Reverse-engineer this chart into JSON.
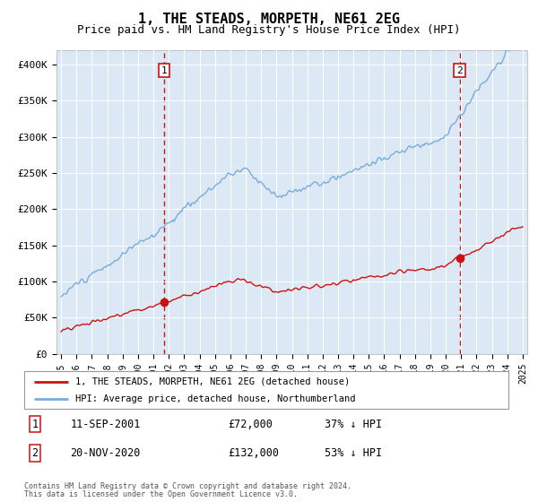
{
  "title": "1, THE STEADS, MORPETH, NE61 2EG",
  "subtitle": "Price paid vs. HM Land Registry's House Price Index (HPI)",
  "title_fontsize": 11,
  "subtitle_fontsize": 9,
  "plot_bg_color": "#dce9f5",
  "hpi_color": "#7aacdc",
  "price_color": "#cc1111",
  "dashed_line_color": "#cc1111",
  "sale1_year": 2001.7,
  "sale1_price": 72000,
  "sale2_year": 2020.9,
  "sale2_price": 132000,
  "legend_entries": [
    "1, THE STEADS, MORPETH, NE61 2EG (detached house)",
    "HPI: Average price, detached house, Northumberland"
  ],
  "footnote_line1": "Contains HM Land Registry data © Crown copyright and database right 2024.",
  "footnote_line2": "This data is licensed under the Open Government Licence v3.0.",
  "table_rows": [
    [
      "1",
      "11-SEP-2001",
      "£72,000",
      "37% ↓ HPI"
    ],
    [
      "2",
      "20-NOV-2020",
      "£132,000",
      "53% ↓ HPI"
    ]
  ],
  "ylim": [
    0,
    420000
  ],
  "yticks": [
    0,
    50000,
    100000,
    150000,
    200000,
    250000,
    300000,
    350000,
    400000
  ],
  "ytick_labels": [
    "£0",
    "£50K",
    "£100K",
    "£150K",
    "£200K",
    "£250K",
    "£300K",
    "£350K",
    "£400K"
  ],
  "start_year": 1995,
  "end_year": 2025
}
